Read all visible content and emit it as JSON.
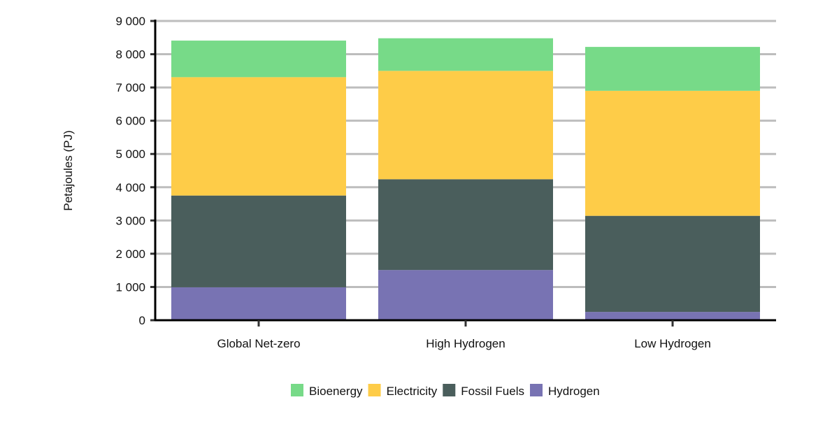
{
  "chart_data": {
    "type": "bar",
    "stacked": true,
    "title": "",
    "xlabel": "",
    "ylabel": "Petajoules (PJ)",
    "ylim": [
      0,
      9000
    ],
    "yticks": [
      0,
      1000,
      2000,
      3000,
      4000,
      5000,
      6000,
      7000,
      8000,
      9000
    ],
    "ytick_labels": [
      "0",
      "1 000",
      "2 000",
      "3 000",
      "4 000",
      "5 000",
      "6 000",
      "7 000",
      "8 000",
      "9 000"
    ],
    "grid": true,
    "legend_position": "bottom",
    "categories": [
      "Global Net-zero",
      "High Hydrogen",
      "Low Hydrogen"
    ],
    "series": [
      {
        "name": "Hydrogen",
        "color": "#7873b3",
        "values": [
          990,
          1510,
          250
        ]
      },
      {
        "name": "Fossil Fuels",
        "color": "#4a5e5c",
        "values": [
          2760,
          2730,
          2890
        ]
      },
      {
        "name": "Electricity",
        "color": "#fecc48",
        "values": [
          3560,
          3260,
          3760
        ]
      },
      {
        "name": "Bioenergy",
        "color": "#77da88",
        "values": [
          1100,
          980,
          1320
        ]
      }
    ],
    "legend_order": [
      "Bioenergy",
      "Electricity",
      "Fossil Fuels",
      "Hydrogen"
    ]
  }
}
